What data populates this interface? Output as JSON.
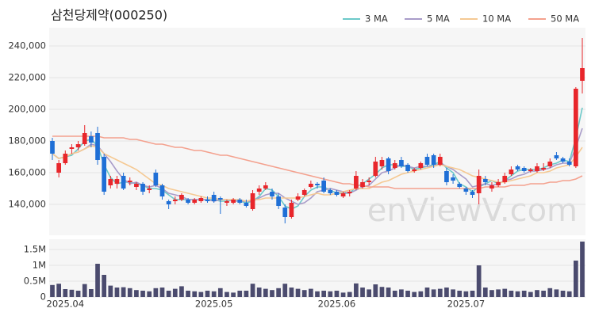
{
  "chart_data": {
    "type": "candlestick",
    "title": "삼천당제약(000250)",
    "watermark": "enViewV.com",
    "up_color": "#e8262b",
    "down_color": "#1f6fd6",
    "volume_color": "#4b4b6e",
    "grid": true,
    "legend": "top-right",
    "categories": [
      null,
      null,
      "2025.04",
      null,
      null,
      null,
      null,
      null,
      null,
      null,
      null,
      null,
      null,
      null,
      null,
      null,
      null,
      null,
      null,
      null,
      null,
      null,
      null,
      null,
      null,
      "2025.05",
      null,
      null,
      null,
      null,
      null,
      null,
      null,
      null,
      null,
      null,
      null,
      null,
      null,
      null,
      null,
      null,
      null,
      null,
      "2025.06",
      null,
      null,
      null,
      null,
      null,
      null,
      null,
      null,
      null,
      null,
      null,
      null,
      null,
      null,
      null,
      null,
      null,
      null,
      null,
      "2025.07",
      null,
      null,
      null,
      null,
      null,
      null,
      null,
      null,
      null,
      null,
      null,
      null,
      null,
      null,
      null,
      null,
      null,
      null
    ],
    "ohlc": [
      [
        180000,
        182000,
        168000,
        172000
      ],
      [
        160000,
        168000,
        157000,
        166000
      ],
      [
        166000,
        174000,
        165000,
        172000
      ],
      [
        175000,
        178000,
        172000,
        176000
      ],
      [
        176000,
        180000,
        174000,
        178000
      ],
      [
        178000,
        190000,
        177000,
        185000
      ],
      [
        183000,
        186000,
        176000,
        179000
      ],
      [
        185000,
        189000,
        165000,
        168000
      ],
      [
        170000,
        172000,
        146000,
        148000
      ],
      [
        152000,
        158000,
        150000,
        156000
      ],
      [
        153000,
        158000,
        150000,
        156000
      ],
      [
        158000,
        160000,
        149000,
        150000
      ],
      [
        154000,
        157000,
        152000,
        155000
      ],
      [
        151000,
        154000,
        149000,
        153000
      ],
      [
        153000,
        154000,
        146000,
        148000
      ],
      [
        149000,
        152000,
        147000,
        150000
      ],
      [
        160000,
        162000,
        151000,
        152000
      ],
      [
        152000,
        153000,
        143000,
        145000
      ],
      [
        142000,
        143000,
        137000,
        140000
      ],
      [
        142000,
        145000,
        140000,
        143000
      ],
      [
        143000,
        147000,
        142000,
        146000
      ],
      [
        143000,
        144000,
        140000,
        141000
      ],
      [
        141000,
        144000,
        140000,
        143000
      ],
      [
        142000,
        145000,
        141000,
        144000
      ],
      [
        143000,
        145000,
        141000,
        142000
      ],
      [
        146000,
        148000,
        141000,
        142000
      ],
      [
        144000,
        145000,
        134000,
        143000
      ],
      [
        141000,
        143000,
        139000,
        142000
      ],
      [
        141000,
        144000,
        140000,
        143000
      ],
      [
        143000,
        144000,
        140000,
        141000
      ],
      [
        141000,
        143000,
        138000,
        139000
      ],
      [
        137000,
        149000,
        136000,
        147000
      ],
      [
        148000,
        152000,
        146000,
        150000
      ],
      [
        150000,
        154000,
        149000,
        152000
      ],
      [
        148000,
        150000,
        143000,
        145000
      ],
      [
        145000,
        147000,
        137000,
        139000
      ],
      [
        138000,
        140000,
        128000,
        132000
      ],
      [
        132000,
        143000,
        131000,
        141000
      ],
      [
        143000,
        147000,
        142000,
        145000
      ],
      [
        146000,
        150000,
        145000,
        149000
      ],
      [
        151000,
        155000,
        150000,
        153000
      ],
      [
        153000,
        154000,
        150000,
        152000
      ],
      [
        155000,
        157000,
        147000,
        148000
      ],
      [
        149000,
        150000,
        146000,
        147000
      ],
      [
        148000,
        149000,
        145000,
        146000
      ],
      [
        145000,
        148000,
        144000,
        147000
      ],
      [
        147000,
        149000,
        145000,
        148000
      ],
      [
        150000,
        161000,
        149000,
        158000
      ],
      [
        151000,
        156000,
        150000,
        154000
      ],
      [
        154000,
        157000,
        152000,
        155000
      ],
      [
        158000,
        170000,
        157000,
        167000
      ],
      [
        164000,
        170000,
        162000,
        168000
      ],
      [
        169000,
        170000,
        159000,
        161000
      ],
      [
        163000,
        168000,
        162000,
        166000
      ],
      [
        168000,
        170000,
        163000,
        164000
      ],
      [
        165000,
        166000,
        160000,
        161000
      ],
      [
        161000,
        163000,
        160000,
        162000
      ],
      [
        163000,
        167000,
        162000,
        166000
      ],
      [
        170000,
        172000,
        164000,
        165000
      ],
      [
        171000,
        172000,
        163000,
        165000
      ],
      [
        165000,
        172000,
        164000,
        170000
      ],
      [
        161000,
        163000,
        152000,
        154000
      ],
      [
        157000,
        159000,
        153000,
        155000
      ],
      [
        153000,
        154000,
        150000,
        151000
      ],
      [
        150000,
        151000,
        146000,
        148000
      ],
      [
        148000,
        149000,
        144000,
        146000
      ],
      [
        147000,
        162000,
        140000,
        158000
      ],
      [
        156000,
        158000,
        152000,
        154000
      ],
      [
        150000,
        154000,
        148000,
        152000
      ],
      [
        152000,
        156000,
        151000,
        154000
      ],
      [
        154000,
        160000,
        153000,
        158000
      ],
      [
        159000,
        164000,
        158000,
        162000
      ],
      [
        164000,
        165000,
        161000,
        162000
      ],
      [
        163000,
        164000,
        160000,
        161000
      ],
      [
        161000,
        163000,
        160000,
        162000
      ],
      [
        161000,
        166000,
        160000,
        164000
      ],
      [
        162000,
        166000,
        161000,
        163000
      ],
      [
        164000,
        169000,
        163000,
        167000
      ],
      [
        171000,
        173000,
        168000,
        169000
      ],
      [
        169000,
        170000,
        166000,
        167000
      ],
      [
        167000,
        169000,
        164000,
        165000
      ],
      [
        164000,
        214000,
        163000,
        213000
      ],
      [
        218000,
        245000,
        210000,
        226000
      ]
    ],
    "volume": [
      380000,
      420000,
      250000,
      230000,
      200000,
      410000,
      250000,
      1050000,
      700000,
      360000,
      300000,
      310000,
      280000,
      220000,
      200000,
      180000,
      280000,
      300000,
      200000,
      260000,
      340000,
      200000,
      180000,
      160000,
      200000,
      180000,
      280000,
      160000,
      140000,
      200000,
      200000,
      420000,
      300000,
      260000,
      220000,
      280000,
      420000,
      300000,
      260000,
      220000,
      260000,
      180000,
      200000,
      180000,
      200000,
      140000,
      160000,
      430000,
      300000,
      240000,
      400000,
      320000,
      300000,
      200000,
      240000,
      200000,
      160000,
      180000,
      300000,
      240000,
      260000,
      300000,
      240000,
      200000,
      180000,
      200000,
      1000000,
      300000,
      220000,
      240000,
      260000,
      200000,
      180000,
      200000,
      160000,
      220000,
      200000,
      280000,
      240000,
      200000,
      180000,
      1150000,
      1750000
    ],
    "series": [
      {
        "name": "3 MA",
        "color": "#6cc9c9",
        "values": [
          172000,
          169000,
          170000,
          171000,
          175000,
          180000,
          181000,
          177000,
          165000,
          157000,
          153000,
          154000,
          154000,
          153000,
          152000,
          150000,
          150000,
          149000,
          146000,
          143000,
          143000,
          143000,
          143000,
          143000,
          143000,
          143000,
          142000,
          142000,
          143000,
          142000,
          141000,
          142000,
          145000,
          150000,
          149000,
          145000,
          139000,
          137000,
          139000,
          145000,
          149000,
          151000,
          151000,
          149000,
          147000,
          147000,
          147000,
          151000,
          153000,
          156000,
          159000,
          163000,
          165000,
          165000,
          164000,
          164000,
          162000,
          163000,
          164000,
          165000,
          167000,
          163000,
          160000,
          153000,
          151000,
          148000,
          151000,
          153000,
          155000,
          153000,
          155000,
          158000,
          161000,
          162000,
          162000,
          162000,
          163000,
          165000,
          166000,
          168000,
          167000,
          182000,
          201000
        ]
      },
      {
        "name": "5 MA",
        "color": "#a99cc9",
        "values": [
          172000,
          169000,
          170000,
          172000,
          173000,
          175000,
          178000,
          177000,
          172000,
          167000,
          161000,
          156000,
          153000,
          154000,
          152000,
          151000,
          152000,
          150000,
          147000,
          146000,
          145000,
          143000,
          143000,
          143000,
          143000,
          142000,
          143000,
          143000,
          142000,
          142000,
          142000,
          142000,
          144000,
          146000,
          147000,
          147000,
          144000,
          142000,
          140000,
          141000,
          144000,
          148000,
          149000,
          150000,
          149000,
          148000,
          147000,
          149000,
          151000,
          152000,
          156000,
          160000,
          161000,
          163000,
          165000,
          164000,
          163000,
          164000,
          164000,
          164000,
          166000,
          164000,
          162000,
          159000,
          156000,
          151000,
          152000,
          153000,
          152000,
          153000,
          155000,
          156000,
          158000,
          159000,
          161000,
          161000,
          162000,
          163000,
          165000,
          166000,
          166000,
          176000,
          188000
        ]
      },
      {
        "name": "10 MA",
        "color": "#f5c993",
        "values": [
          172000,
          169000,
          170000,
          172000,
          173000,
          175000,
          177000,
          176000,
          172000,
          170000,
          168000,
          166000,
          164000,
          162000,
          159000,
          156000,
          153000,
          152000,
          150000,
          149000,
          148000,
          147000,
          146000,
          145000,
          144000,
          144000,
          143000,
          143000,
          143000,
          143000,
          142000,
          143000,
          143000,
          144000,
          144000,
          144000,
          144000,
          144000,
          144000,
          145000,
          146000,
          147000,
          146000,
          146000,
          147000,
          148000,
          149000,
          150000,
          150000,
          150000,
          152000,
          154000,
          155000,
          157000,
          159000,
          160000,
          161000,
          162000,
          163000,
          164000,
          165000,
          164000,
          163000,
          162000,
          160000,
          158000,
          157000,
          156000,
          155000,
          154000,
          154000,
          155000,
          156000,
          157000,
          158000,
          160000,
          160000,
          161000,
          163000,
          164000,
          165000,
          170000,
          176000
        ]
      },
      {
        "name": "50 MA",
        "color": "#f4a18e",
        "values": [
          183000,
          183000,
          183000,
          183000,
          183000,
          183000,
          183000,
          183000,
          182000,
          182000,
          182000,
          182000,
          181000,
          181000,
          180000,
          179000,
          178000,
          178000,
          177000,
          176000,
          176000,
          175000,
          174000,
          174000,
          173000,
          172000,
          171000,
          171000,
          170000,
          169000,
          168000,
          167000,
          166000,
          165000,
          164000,
          163000,
          162000,
          161000,
          160000,
          159000,
          158000,
          157000,
          156000,
          155000,
          154000,
          153000,
          153000,
          152000,
          152000,
          151000,
          151000,
          151000,
          151000,
          150000,
          150000,
          150000,
          150000,
          150000,
          150000,
          150000,
          150000,
          150000,
          150000,
          150000,
          150000,
          150000,
          150000,
          151000,
          151000,
          151000,
          151000,
          152000,
          152000,
          152000,
          153000,
          153000,
          153000,
          154000,
          154000,
          155000,
          155000,
          156000,
          158000
        ]
      }
    ],
    "ylim": [
      120500,
      251500
    ],
    "yticks": [
      {
        "value": 140000,
        "label": "140,000"
      },
      {
        "value": 160000,
        "label": "160,000"
      },
      {
        "value": 180000,
        "label": "180,000"
      },
      {
        "value": 200000,
        "label": "200,000"
      },
      {
        "value": 220000,
        "label": "220,000"
      },
      {
        "value": 240000,
        "label": "240,000"
      }
    ],
    "volume_ylim": [
      0,
      1825000
    ],
    "volume_yticks": [
      0,
      {
        "value": 500000,
        "label": "0.5M"
      },
      {
        "value": 1000000,
        "label": "1M"
      },
      {
        "value": 1500000,
        "label": "1.5M"
      }
    ]
  }
}
